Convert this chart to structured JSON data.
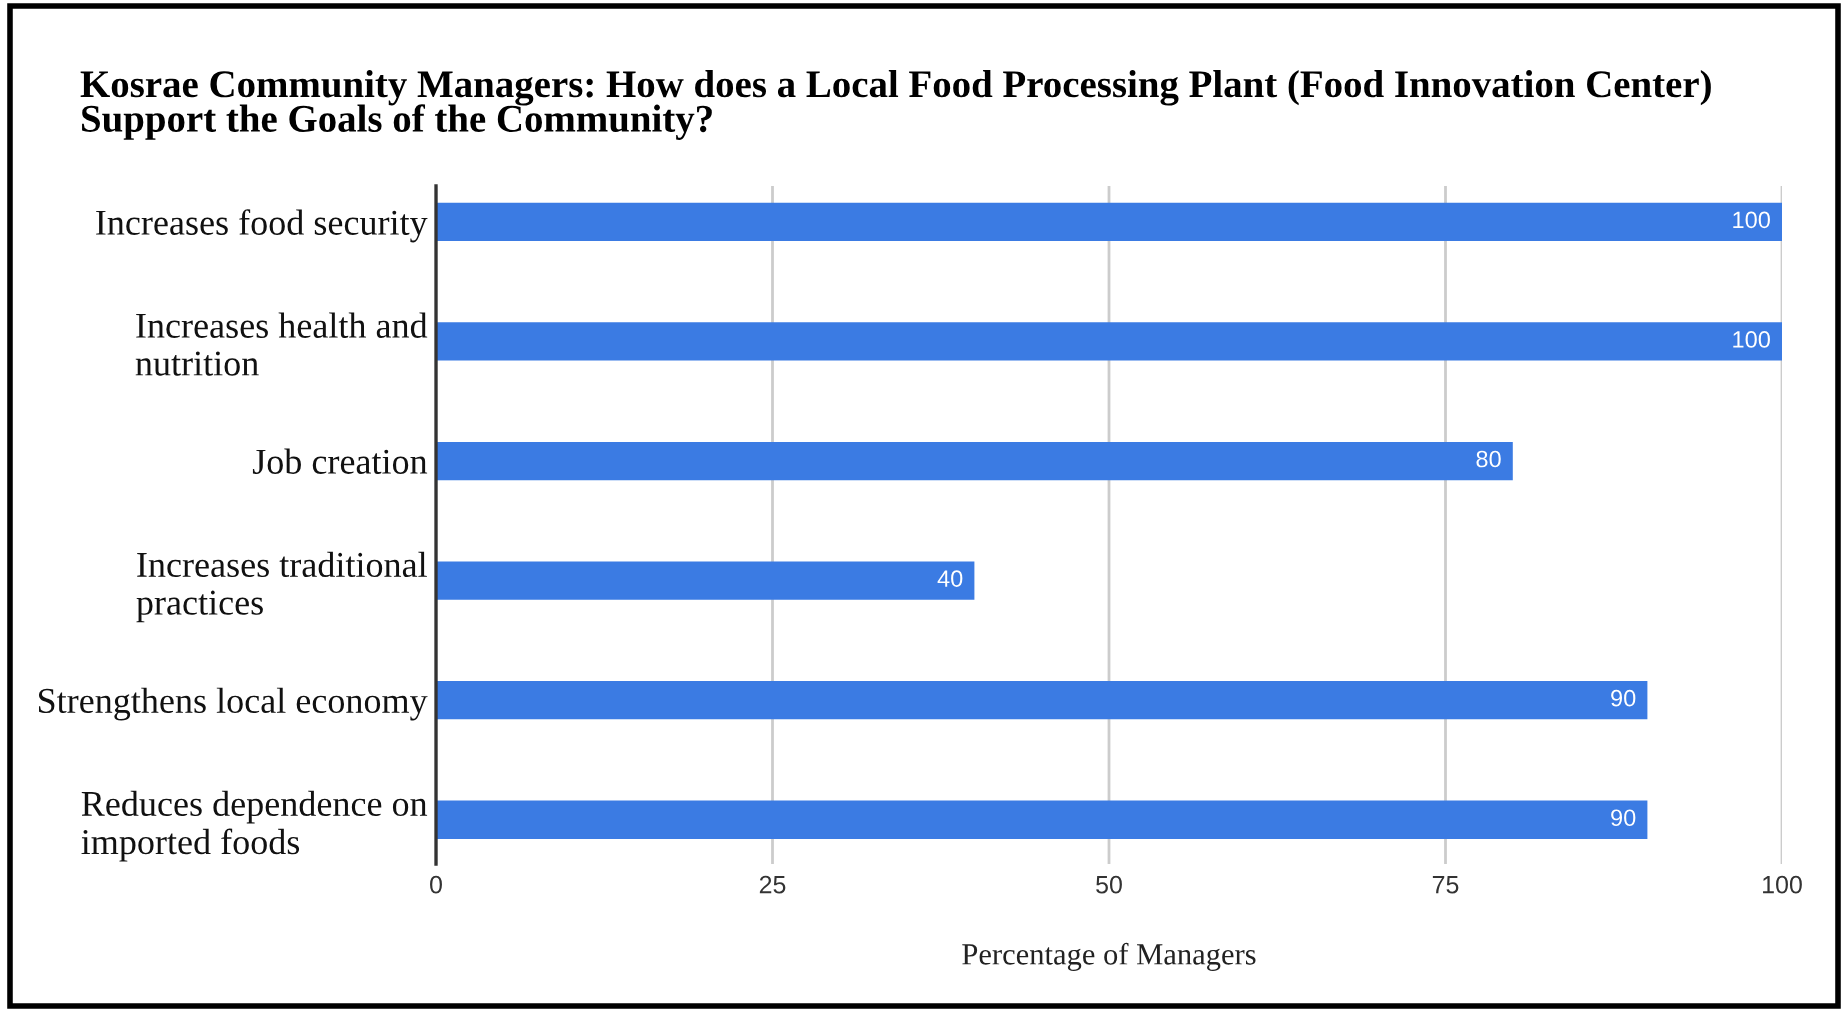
{
  "chart_data": {
    "type": "bar",
    "orientation": "horizontal",
    "title": "Kosrae Community Managers: How does a Local Food Processing Plant (Food Innovation Center)\nSupport the Goals of the Community?",
    "xlabel": "Percentage of Managers",
    "categories": [
      "Increases food security",
      "Increases health and\nnutrition",
      "Job creation",
      "Increases traditional\npractices",
      "Strengthens local economy",
      "Reduces dependence on\nimported foods"
    ],
    "values": [
      100,
      100,
      80,
      40,
      90,
      90
    ],
    "color": "#3b7be3",
    "xlim": [
      0,
      100
    ],
    "xticks": [
      0,
      25,
      50,
      75,
      100
    ],
    "grid": "x",
    "data_labels": true
  }
}
